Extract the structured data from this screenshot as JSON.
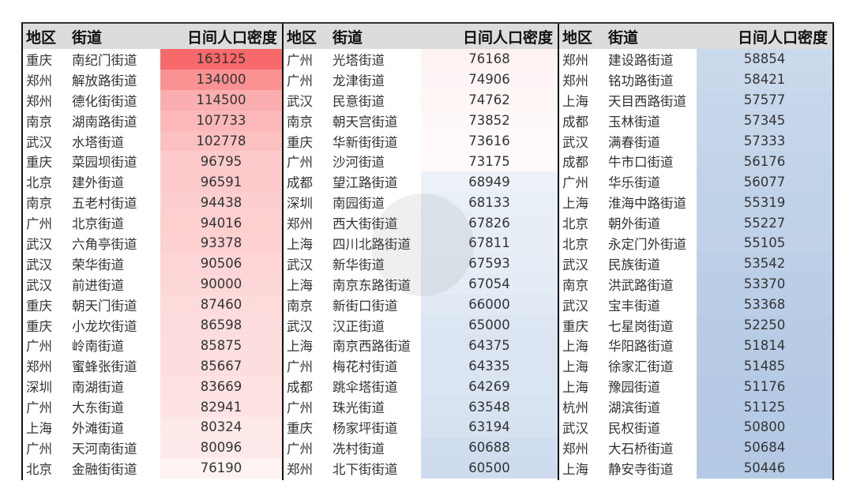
{
  "headers": [
    "地区",
    "街道",
    "日间人口密度"
  ],
  "color_scale": {
    "high": "#f8696b",
    "mid": "#ffffff",
    "low": "#b4c9e4"
  },
  "groups": [
    {
      "rows": [
        [
          "重庆",
          "南纪门街道",
          "163125"
        ],
        [
          "郑州",
          "解放路街道",
          "134000"
        ],
        [
          "郑州",
          "德化街街道",
          "114500"
        ],
        [
          "南京",
          "湖南路街道",
          "107733"
        ],
        [
          "武汉",
          "水塔街道",
          "102778"
        ],
        [
          "重庆",
          "菜园坝街道",
          "96795"
        ],
        [
          "北京",
          "建外街道",
          "96591"
        ],
        [
          "南京",
          "五老村街道",
          "94438"
        ],
        [
          "广州",
          "北京街道",
          "94016"
        ],
        [
          "武汉",
          "六角亭街道",
          "93378"
        ],
        [
          "武汉",
          "荣华街道",
          "90506"
        ],
        [
          "武汉",
          "前进街道",
          "90000"
        ],
        [
          "重庆",
          "朝天门街道",
          "87460"
        ],
        [
          "重庆",
          "小龙坎街道",
          "86598"
        ],
        [
          "广州",
          "岭南街道",
          "85875"
        ],
        [
          "郑州",
          "蜜蜂张街道",
          "85667"
        ],
        [
          "深圳",
          "南湖街道",
          "83669"
        ],
        [
          "广州",
          "大东街道",
          "82941"
        ],
        [
          "上海",
          "外滩街道",
          "80324"
        ],
        [
          "广州",
          "天河南街道",
          "80096"
        ],
        [
          "北京",
          "金融街街道",
          "76190"
        ]
      ]
    },
    {
      "rows": [
        [
          "广州",
          "光塔街道",
          "76168"
        ],
        [
          "广州",
          "龙津街道",
          "74906"
        ],
        [
          "武汉",
          "民意街道",
          "74762"
        ],
        [
          "南京",
          "朝天宫街道",
          "73852"
        ],
        [
          "重庆",
          "华新街街道",
          "73616"
        ],
        [
          "广州",
          "沙河街道",
          "73175"
        ],
        [
          "成都",
          "望江路街道",
          "68949"
        ],
        [
          "深圳",
          "南园街道",
          "68133"
        ],
        [
          "郑州",
          "西大街街道",
          "67826"
        ],
        [
          "上海",
          "四川北路街道",
          "67811"
        ],
        [
          "武汉",
          "新华街道",
          "67593"
        ],
        [
          "上海",
          "南京东路街道",
          "67054"
        ],
        [
          "南京",
          "新街口街道",
          "66000"
        ],
        [
          "武汉",
          "汉正街道",
          "65000"
        ],
        [
          "上海",
          "南京西路街道",
          "64375"
        ],
        [
          "广州",
          "梅花村街道",
          "64335"
        ],
        [
          "成都",
          "跳伞塔街道",
          "64269"
        ],
        [
          "广州",
          "珠光街道",
          "63548"
        ],
        [
          "重庆",
          "杨家坪街道",
          "63194"
        ],
        [
          "广州",
          "冼村街道",
          "60688"
        ],
        [
          "郑州",
          "北下街街道",
          "60500"
        ]
      ]
    },
    {
      "rows": [
        [
          "郑州",
          "建设路街道",
          "58854"
        ],
        [
          "郑州",
          "铭功路街道",
          "58421"
        ],
        [
          "上海",
          "天目西路街道",
          "57577"
        ],
        [
          "成都",
          "玉林街道",
          "57345"
        ],
        [
          "武汉",
          "满春街道",
          "57333"
        ],
        [
          "成都",
          "牛市口街道",
          "56176"
        ],
        [
          "广州",
          "华乐街道",
          "56077"
        ],
        [
          "上海",
          "淮海中路街道",
          "55319"
        ],
        [
          "北京",
          "朝外街道",
          "55227"
        ],
        [
          "北京",
          "永定门外街道",
          "55105"
        ],
        [
          "武汉",
          "民族街道",
          "53542"
        ],
        [
          "南京",
          "洪武路街道",
          "53370"
        ],
        [
          "武汉",
          "宝丰街道",
          "53368"
        ],
        [
          "重庆",
          "七星岗街道",
          "52250"
        ],
        [
          "上海",
          "华阳路街道",
          "51814"
        ],
        [
          "上海",
          "徐家汇街道",
          "51485"
        ],
        [
          "上海",
          "豫园街道",
          "51176"
        ],
        [
          "杭州",
          "湖滨街道",
          "51125"
        ],
        [
          "武汉",
          "民权街道",
          "50800"
        ],
        [
          "郑州",
          "大石桥街道",
          "50684"
        ],
        [
          "上海",
          "静安寺街道",
          "50446"
        ]
      ]
    }
  ]
}
